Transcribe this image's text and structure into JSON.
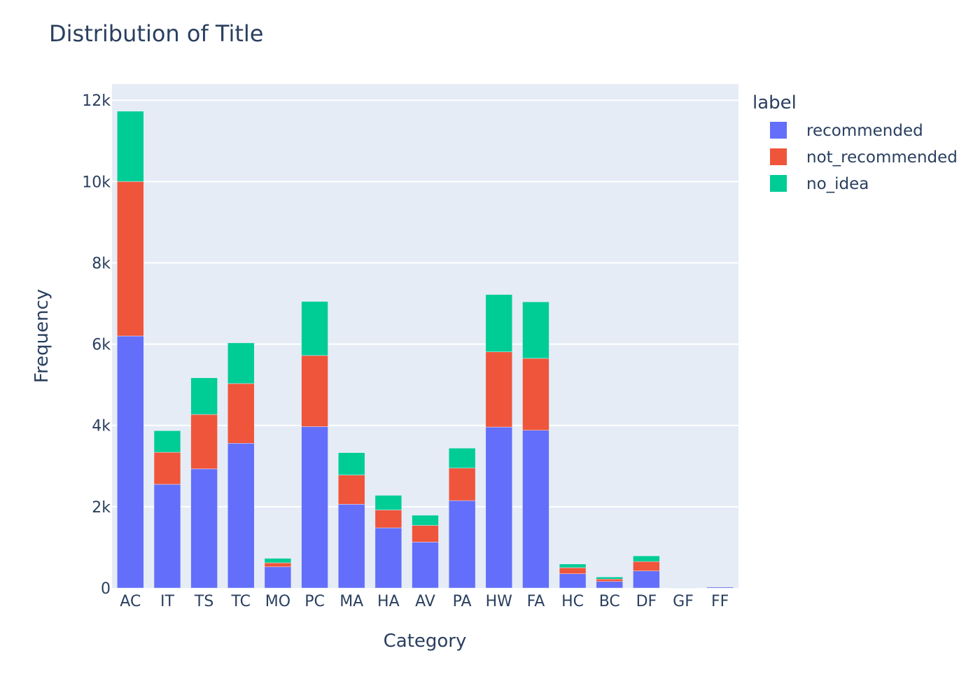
{
  "chart_data": {
    "type": "bar",
    "barmode": "stack",
    "title": "Distribution of Title",
    "xlabel": "Category",
    "ylabel": "Frequency",
    "ylim": [
      0,
      12400
    ],
    "yticks": [
      0,
      2000,
      4000,
      6000,
      8000,
      10000,
      12000
    ],
    "ytick_labels": [
      "0",
      "2k",
      "4k",
      "6k",
      "8k",
      "10k",
      "12k"
    ],
    "grid": true,
    "legend_title": "label",
    "legend_position": "top-right outside",
    "categories": [
      "AC",
      "IT",
      "TS",
      "TC",
      "MO",
      "PC",
      "MA",
      "HA",
      "AV",
      "PA",
      "HW",
      "FA",
      "HC",
      "BC",
      "DF",
      "GF",
      "FF"
    ],
    "series": [
      {
        "name": "recommended",
        "color": "#636efa",
        "values": [
          6200,
          2550,
          2930,
          3560,
          520,
          3970,
          2060,
          1480,
          1130,
          2150,
          3960,
          3880,
          350,
          160,
          420,
          5,
          25
        ]
      },
      {
        "name": "not_recommended",
        "color": "#ef553b",
        "values": [
          3800,
          790,
          1340,
          1470,
          100,
          1750,
          720,
          440,
          410,
          800,
          1850,
          1770,
          150,
          60,
          230,
          3,
          10
        ]
      },
      {
        "name": "no_idea",
        "color": "#00cc96",
        "values": [
          1730,
          530,
          900,
          1000,
          110,
          1330,
          550,
          360,
          250,
          490,
          1410,
          1390,
          90,
          50,
          140,
          2,
          5
        ]
      }
    ]
  }
}
